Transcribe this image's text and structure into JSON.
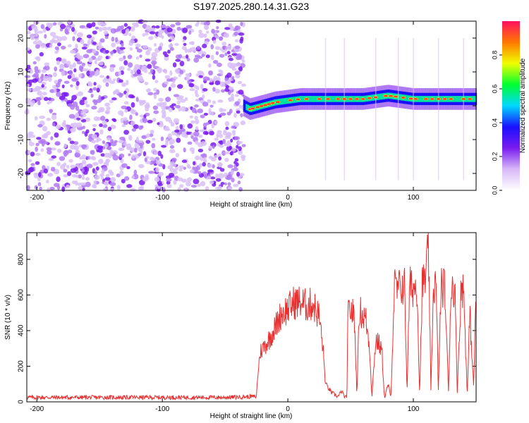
{
  "title": "S197.2025.280.14.31.G23",
  "chart_data": [
    {
      "type": "heatmap",
      "xlabel": "Height of straight line (km)",
      "ylabel": "Frequency (Hz)",
      "xlim": [
        -208,
        150
      ],
      "ylim": [
        -25,
        25
      ],
      "x_ticks": [
        -200,
        -100,
        0,
        100
      ],
      "y_ticks": [
        -20,
        -10,
        0,
        10,
        20
      ],
      "colorbar": {
        "label": "Normalized spectral amplitude",
        "range": [
          0,
          1
        ],
        "ticks": [
          0.0,
          0.2,
          0.4,
          0.6,
          0.8
        ],
        "colors": [
          "#ffffff",
          "#d8b8f8",
          "#7a1cf0",
          "#1a10ff",
          "#00d8ff",
          "#00ff30",
          "#f0ff00",
          "#ff7800",
          "#ff1060"
        ]
      },
      "features": {
        "noise_region_x": [
          -208,
          -35
        ],
        "signal_onset_x": -35,
        "signal_freq_track": {
          "x": [
            -35,
            -30,
            -20,
            -10,
            0,
            10,
            20,
            40,
            60,
            80,
            90,
            100,
            120,
            150
          ],
          "y": [
            0,
            -1,
            0,
            1,
            1.5,
            2,
            2,
            2,
            2,
            3,
            2.5,
            2,
            2,
            2
          ]
        },
        "peak_markers_x": [
          -30,
          -28,
          -24,
          -21,
          -18,
          -15,
          -12,
          -8,
          2,
          8,
          15,
          25,
          32,
          40,
          45,
          50,
          55,
          60,
          65,
          70,
          78,
          82,
          86,
          92,
          98,
          102,
          110,
          115,
          120,
          125,
          130,
          140,
          145
        ]
      }
    },
    {
      "type": "line",
      "xlabel": "Height of straight line (km)",
      "ylabel": "SNR (10 * v/v)",
      "xlim": [
        -208,
        150
      ],
      "ylim": [
        0,
        950
      ],
      "x_ticks": [
        -200,
        -100,
        0,
        100
      ],
      "y_ticks": [
        0,
        200,
        400,
        600,
        800
      ],
      "color": "#e83030",
      "series": {
        "x": [
          -208,
          -150,
          -100,
          -50,
          -25,
          -24,
          -22,
          -20,
          -15,
          -10,
          -5,
          0,
          5,
          10,
          15,
          20,
          25,
          28,
          30,
          35,
          40,
          43,
          45,
          47,
          48,
          50,
          53,
          55,
          57,
          60,
          62,
          65,
          67,
          70,
          73,
          75,
          77,
          80,
          82,
          85,
          87,
          90,
          93,
          95,
          97,
          100,
          103,
          105,
          107,
          110,
          112,
          114,
          116,
          118,
          120,
          122,
          125,
          128,
          130,
          133,
          135,
          138,
          140,
          143,
          145,
          147,
          148,
          150
        ],
        "y": [
          25,
          25,
          25,
          25,
          30,
          150,
          280,
          300,
          350,
          420,
          500,
          520,
          560,
          560,
          540,
          550,
          480,
          300,
          100,
          50,
          30,
          60,
          30,
          20,
          500,
          520,
          480,
          40,
          520,
          480,
          470,
          320,
          30,
          350,
          320,
          280,
          20,
          100,
          20,
          650,
          620,
          650,
          650,
          60,
          650,
          640,
          650,
          40,
          650,
          700,
          880,
          60,
          650,
          660,
          60,
          640,
          650,
          60,
          640,
          650,
          60,
          630,
          640,
          40,
          500,
          230,
          80,
          620
        ]
      }
    }
  ]
}
